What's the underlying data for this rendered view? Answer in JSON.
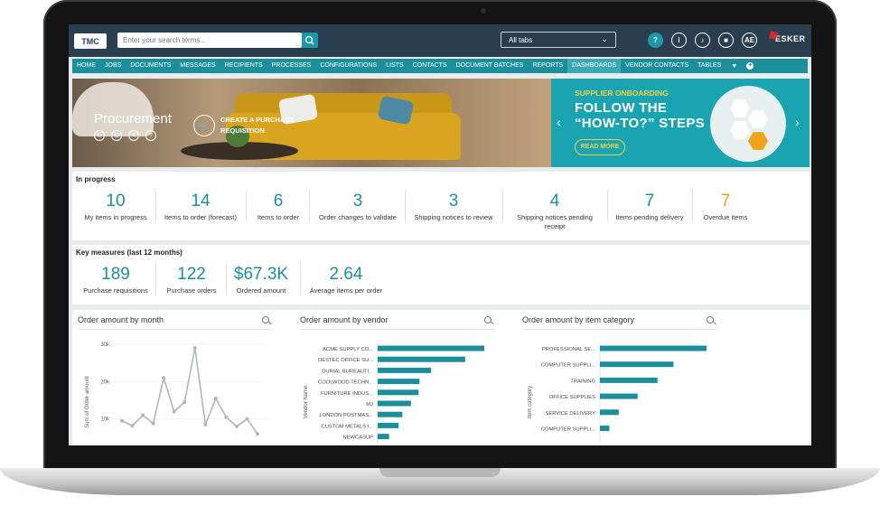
{
  "header": {
    "logo_text": "TMC",
    "search_placeholder": "Enter your search terms...",
    "tab_selector": "All tabs",
    "icons": {
      "help": "?",
      "info": "i",
      "user_initials": "AE"
    },
    "brand": "ESKER"
  },
  "nav": {
    "items": [
      "HOME",
      "JOBS",
      "DOCUMENTS",
      "MESSAGES",
      "RECIPIENTS",
      "PROCESSES",
      "CONFIGURATIONS",
      "LISTS",
      "CONTACTS",
      "DOCUMENT BATCHES",
      "REPORTS",
      "DASHBOARDS",
      "VENDOR CONTACTS",
      "TABLES"
    ],
    "active": "DASHBOARDS"
  },
  "banner": {
    "title": "Procurement",
    "action": "CREATE A PURCHASE REQUISITION",
    "promo_sub": "SUPPLIER ONBOARDING",
    "promo_big": "FOLLOW THE “HOW-TO?” STEPS",
    "promo_button": "READ MORE"
  },
  "in_progress": {
    "title": "In progress",
    "items": [
      {
        "value": "10",
        "label": "My items in progress"
      },
      {
        "value": "14",
        "label": "Items to order (forecast)"
      },
      {
        "value": "6",
        "label": "Items to order"
      },
      {
        "value": "3",
        "label": "Order changes to validate"
      },
      {
        "value": "3",
        "label": "Shipping notices to review"
      },
      {
        "value": "4",
        "label": "Shipping notices pending receipt"
      },
      {
        "value": "7",
        "label": "Items pending delivery"
      },
      {
        "value": "7",
        "label": "Overdue items"
      }
    ]
  },
  "key_measures": {
    "title": "Key measures (last 12 months)",
    "items": [
      {
        "value": "189",
        "label": "Purchase requisitions"
      },
      {
        "value": "122",
        "label": "Purchase orders"
      },
      {
        "value": "$67.3K",
        "label": "Ordered amount"
      },
      {
        "value": "2.64",
        "label": "Average items per order"
      }
    ]
  },
  "charts": {
    "month": {
      "title": "Order amount by month"
    },
    "vendor": {
      "title": "Order amount by vendor"
    },
    "category": {
      "title": "Order amount by item category"
    }
  },
  "chart_data": [
    {
      "type": "line",
      "title": "Order amount by month",
      "ylabel": "Sum of Order amount",
      "xlabel": "",
      "yticks": [
        "30k",
        "20k",
        "10k"
      ],
      "ylim": [
        0,
        30000
      ],
      "values": [
        9500,
        8200,
        11000,
        8800,
        21000,
        12000,
        14500,
        29000,
        8500,
        15500,
        10500,
        8000,
        10000,
        6000
      ]
    },
    {
      "type": "bar",
      "orientation": "horizontal",
      "title": "Order amount by vendor",
      "ylabel": "Vendor Name",
      "categories": [
        "ACME SUPPLY CO...",
        "DESTEC OFFICE SU...",
        "DURIAL BUREAUTI...",
        "COOLWOOD TECHN...",
        "FURNITURE INDUS...",
        "MJ",
        "LONDON POSTMAS...",
        "CUSTOM METALS I...",
        "NEWCASUP"
      ],
      "values": [
        112,
        92,
        56,
        44,
        43,
        35,
        26,
        22,
        12
      ]
    },
    {
      "type": "bar",
      "orientation": "horizontal",
      "title": "Order amount by item category",
      "ylabel": "Item category",
      "categories": [
        "PROFESSIONAL SE...",
        "COMPUTER SUPPLI...",
        "TRAINING",
        "OFFICE SUPPLIES",
        "SERVICE DELIVERY",
        "COMPUTER SUPPLI..."
      ],
      "values": [
        113,
        78,
        61,
        40,
        20,
        10
      ]
    }
  ],
  "colors": {
    "accent": "#1b8f9b",
    "bar": "#1b8f9b",
    "line": "#b0b5ba",
    "overdue": "#f0a21a"
  }
}
